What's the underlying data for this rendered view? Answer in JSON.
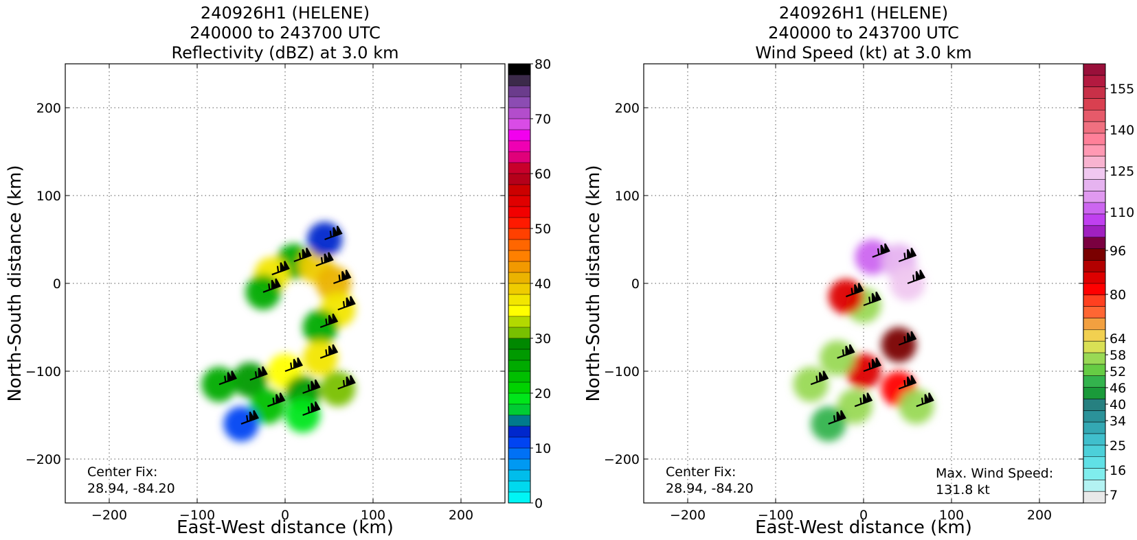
{
  "chart_data": [
    {
      "type": "heatmap",
      "title_lines": [
        "240926H1 (HELENE)",
        "240000 to 243700 UTC",
        "Reflectivity (dBZ) at 3.0 km"
      ],
      "xlabel": "East-West distance (km)",
      "ylabel": "North-South distance (km)",
      "xlim": [
        -250,
        250
      ],
      "ylim": [
        -250,
        250
      ],
      "xticks": [
        -200,
        -100,
        0,
        100,
        200
      ],
      "yticks": [
        -200,
        -100,
        0,
        100,
        200
      ],
      "grid": true,
      "center_fix_label": "Center Fix:",
      "center_fix_value": "28.94, -84.20",
      "colorbar": {
        "min": 0,
        "max": 80,
        "tick_values": [
          0,
          10,
          20,
          30,
          40,
          50,
          60,
          70,
          80
        ],
        "tick_labels": [
          "0",
          "10",
          "20",
          "30",
          "40",
          "50",
          "60",
          "70",
          "80"
        ],
        "colors": [
          "#00f5f5",
          "#00d9ee",
          "#00bdeb",
          "#0099f2",
          "#0071f5",
          "#0044f2",
          "#0027cc",
          "#007a8c",
          "#00cc33",
          "#00e61a",
          "#00d200",
          "#00bf00",
          "#00ab00",
          "#009a00",
          "#008800",
          "#78c000",
          "#b3d900",
          "#ffff00",
          "#f2e600",
          "#efcc00",
          "#ebb300",
          "#f29900",
          "#ff8000",
          "#ff6600",
          "#ff4000",
          "#ff1a00",
          "#f20000",
          "#e00000",
          "#cc0000",
          "#b5001a",
          "#c8002b",
          "#e0007a",
          "#ef00b3",
          "#f200ee",
          "#d94ce6",
          "#b34dcc",
          "#8c4cb3",
          "#6b3c8c",
          "#3c2a4a",
          "#000000"
        ]
      },
      "series": [
        {
          "x": 10,
          "y": 25,
          "value": 24
        },
        {
          "x": 35,
          "y": 20,
          "value": 38
        },
        {
          "x": 55,
          "y": 0,
          "value": 40
        },
        {
          "x": 60,
          "y": -30,
          "value": 36
        },
        {
          "x": 40,
          "y": -50,
          "value": 24
        },
        {
          "x": -15,
          "y": 10,
          "value": 36
        },
        {
          "x": -25,
          "y": -10,
          "value": 24
        },
        {
          "x": 45,
          "y": 50,
          "value": 12
        },
        {
          "x": 40,
          "y": -85,
          "value": 36
        },
        {
          "x": 0,
          "y": -100,
          "value": 34
        },
        {
          "x": -40,
          "y": -110,
          "value": 26
        },
        {
          "x": -75,
          "y": -115,
          "value": 24
        },
        {
          "x": 20,
          "y": -125,
          "value": 26
        },
        {
          "x": 60,
          "y": -120,
          "value": 30
        },
        {
          "x": -20,
          "y": -140,
          "value": 22
        },
        {
          "x": -50,
          "y": -160,
          "value": 10
        },
        {
          "x": 20,
          "y": -150,
          "value": 18
        }
      ]
    },
    {
      "type": "heatmap",
      "title_lines": [
        "240926H1 (HELENE)",
        "240000 to 243700 UTC",
        "Wind Speed (kt) at 3.0 km"
      ],
      "xlabel": "East-West distance (km)",
      "ylabel": "North-South distance (km)",
      "xlim": [
        -250,
        250
      ],
      "ylim": [
        -250,
        250
      ],
      "xticks": [
        -200,
        -100,
        0,
        100,
        200
      ],
      "yticks": [
        -200,
        -100,
        0,
        100,
        200
      ],
      "grid": true,
      "center_fix_label": "Center Fix:",
      "center_fix_value": "28.94, -84.20",
      "max_wind_label": "Max. Wind Speed:",
      "max_wind_value": "131.8 kt",
      "colorbar": {
        "min": 4,
        "max": 164,
        "tick_values": [
          7,
          16,
          25,
          34,
          40,
          46,
          52,
          58,
          64,
          80,
          96,
          110,
          125,
          140,
          155
        ],
        "tick_labels": [
          "7",
          "16",
          "25",
          "34",
          "40",
          "46",
          "52",
          "58",
          "64",
          "80",
          "96",
          "110",
          "125",
          "140",
          "155"
        ],
        "colors": [
          "#e9e9e9",
          "#b3f2f2",
          "#80eded",
          "#60e0e6",
          "#4cd0d9",
          "#40bfcc",
          "#34a8b3",
          "#2b9299",
          "#268080",
          "#1a9a3a",
          "#33b34d",
          "#66cc44",
          "#99d955",
          "#d9e055",
          "#f2d050",
          "#f2a040",
          "#ff6633",
          "#ff4020",
          "#ff0000",
          "#dd0000",
          "#b30000",
          "#7a0000",
          "#7a0040",
          "#a020c0",
          "#c040f0",
          "#cc66f0",
          "#e099f0",
          "#e6b3f0",
          "#f0c8f0",
          "#f8b3d0",
          "#ff99b3",
          "#ff8099",
          "#f07080",
          "#e65a6a",
          "#d94050",
          "#c83048",
          "#b31a40",
          "#99103a"
        ]
      },
      "series": [
        {
          "x": 10,
          "y": 30,
          "value": 110
        },
        {
          "x": 40,
          "y": 25,
          "value": 120
        },
        {
          "x": 50,
          "y": 0,
          "value": 125
        },
        {
          "x": 0,
          "y": -25,
          "value": 58
        },
        {
          "x": -20,
          "y": -15,
          "value": 85
        },
        {
          "x": 40,
          "y": -70,
          "value": 96
        },
        {
          "x": 0,
          "y": -100,
          "value": 85
        },
        {
          "x": -60,
          "y": -115,
          "value": 58
        },
        {
          "x": -30,
          "y": -85,
          "value": 58
        },
        {
          "x": 40,
          "y": -120,
          "value": 80
        },
        {
          "x": -10,
          "y": -140,
          "value": 58
        },
        {
          "x": -40,
          "y": -160,
          "value": 50
        },
        {
          "x": 60,
          "y": -140,
          "value": 58
        }
      ]
    }
  ]
}
